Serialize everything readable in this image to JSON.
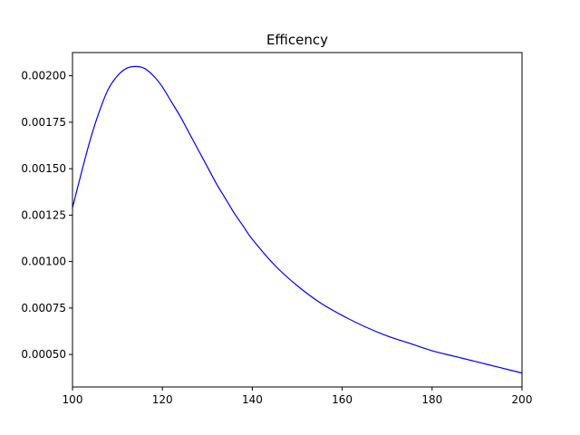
{
  "chart_data": {
    "type": "line",
    "title": "Efficency",
    "xlabel": "",
    "ylabel": "",
    "xlim": [
      100,
      200
    ],
    "ylim": [
      0.000325,
      0.002125
    ],
    "grid": false,
    "colors": {
      "line": "#0000ff",
      "axes": "#000000",
      "background": "#ffffff"
    },
    "x_ticks": [
      100,
      120,
      140,
      160,
      180,
      200
    ],
    "x_tick_labels": [
      "100",
      "120",
      "140",
      "160",
      "180",
      "200"
    ],
    "y_ticks": [
      0.0005,
      0.00075,
      0.001,
      0.00125,
      0.0015,
      0.00175,
      0.002
    ],
    "y_tick_labels": [
      "0.00050",
      "0.00075",
      "0.00100",
      "0.00125",
      "0.00150",
      "0.00175",
      "0.00200"
    ],
    "series": [
      {
        "x": [
          100,
          102,
          104,
          106,
          108,
          110,
          112,
          114,
          116,
          118,
          120,
          122,
          124,
          126,
          128,
          130,
          132,
          134,
          136,
          138,
          140,
          145,
          150,
          155,
          160,
          165,
          170,
          175,
          180,
          185,
          190,
          195,
          200
        ],
        "y": [
          0.00129,
          0.00148,
          0.00166,
          0.00181,
          0.00193,
          0.002,
          0.00204,
          0.00205,
          0.00204,
          0.002,
          0.00194,
          0.00186,
          0.00178,
          0.00169,
          0.0016,
          0.00151,
          0.00142,
          0.00134,
          0.00126,
          0.00119,
          0.00112,
          0.00098,
          0.00087,
          0.00078,
          0.00071,
          0.00065,
          0.0006,
          0.00056,
          0.00052,
          0.00049,
          0.00046,
          0.00043,
          0.0004
        ]
      }
    ]
  }
}
